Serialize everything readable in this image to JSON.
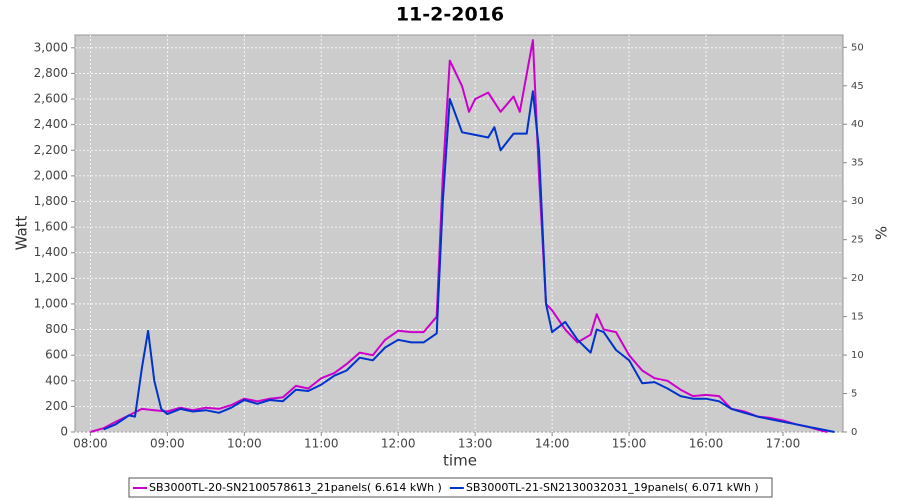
{
  "chart_data": {
    "type": "line",
    "title": "11-2-2016",
    "xlabel": "time",
    "ylabel": "Watt",
    "y2label": "%",
    "xlim": [
      7.8,
      17.78
    ],
    "xticks": [
      {
        "value": 8,
        "label": "08:00"
      },
      {
        "value": 9,
        "label": "09:00"
      },
      {
        "value": 10,
        "label": "10:00"
      },
      {
        "value": 11,
        "label": "11:00"
      },
      {
        "value": 12,
        "label": "12:00"
      },
      {
        "value": 13,
        "label": "13:00"
      },
      {
        "value": 14,
        "label": "14:00"
      },
      {
        "value": 15,
        "label": "15:00"
      },
      {
        "value": 16,
        "label": "16:00"
      },
      {
        "value": 17,
        "label": "17:00"
      }
    ],
    "ylim": [
      0,
      3100
    ],
    "yticks": [
      0,
      200,
      400,
      600,
      800,
      {
        "value": 1000,
        "label": "1,000"
      },
      {
        "value": 1200,
        "label": "1,200"
      },
      {
        "value": 1400,
        "label": "1,400"
      },
      {
        "value": 1600,
        "label": "1,600"
      },
      {
        "value": 1800,
        "label": "1,800"
      },
      {
        "value": 2000,
        "label": "2,000"
      },
      {
        "value": 2200,
        "label": "2,200"
      },
      {
        "value": 2400,
        "label": "2,400"
      },
      {
        "value": 2600,
        "label": "2,600"
      },
      {
        "value": 2800,
        "label": "2,800"
      },
      {
        "value": 3000,
        "label": "3,000"
      }
    ],
    "y2lim": [
      0,
      51.6
    ],
    "y2ticks": [
      0,
      5,
      10,
      15,
      20,
      25,
      30,
      35,
      40,
      45,
      50
    ],
    "grid": true,
    "legend": "bottom",
    "series": [
      {
        "name": "SB3000TL-20-SN2100578613_21panels( 6.614 kWh )",
        "color": "#cc00cc",
        "x": [
          8.0,
          8.17,
          8.33,
          8.5,
          8.67,
          8.83,
          9.0,
          9.17,
          9.33,
          9.5,
          9.67,
          9.83,
          10.0,
          10.17,
          10.33,
          10.5,
          10.67,
          10.83,
          11.0,
          11.17,
          11.33,
          11.5,
          11.67,
          11.83,
          12.0,
          12.17,
          12.33,
          12.5,
          12.58,
          12.67,
          12.83,
          12.92,
          13.0,
          13.17,
          13.33,
          13.5,
          13.58,
          13.75,
          13.83,
          13.92,
          14.0,
          14.17,
          14.33,
          14.5,
          14.58,
          14.67,
          14.83,
          15.0,
          15.17,
          15.33,
          15.5,
          15.67,
          15.83,
          16.0,
          16.17,
          16.33,
          16.5,
          16.67,
          16.83,
          17.0,
          17.17,
          17.33,
          17.5,
          17.58
        ],
        "values": [
          0,
          30,
          80,
          130,
          180,
          170,
          160,
          190,
          170,
          190,
          180,
          210,
          260,
          240,
          260,
          270,
          360,
          340,
          420,
          460,
          530,
          620,
          600,
          720,
          790,
          780,
          780,
          900,
          2000,
          2900,
          2700,
          2500,
          2600,
          2650,
          2500,
          2620,
          2500,
          3060,
          2000,
          1000,
          950,
          800,
          700,
          760,
          920,
          800,
          780,
          600,
          480,
          420,
          400,
          330,
          280,
          290,
          280,
          180,
          160,
          120,
          110,
          90,
          60,
          40,
          10,
          0
        ]
      },
      {
        "name": "SB3000TL-21-SN2130032031_19panels( 6.071 kWh )",
        "color": "#0033cc",
        "x": [
          8.17,
          8.33,
          8.5,
          8.58,
          8.67,
          8.75,
          8.83,
          8.92,
          9.0,
          9.17,
          9.33,
          9.5,
          9.67,
          9.83,
          10.0,
          10.17,
          10.33,
          10.5,
          10.67,
          10.83,
          11.0,
          11.17,
          11.33,
          11.5,
          11.67,
          11.83,
          12.0,
          12.17,
          12.33,
          12.5,
          12.58,
          12.67,
          12.83,
          13.0,
          13.17,
          13.25,
          13.33,
          13.5,
          13.67,
          13.75,
          13.83,
          13.92,
          14.0,
          14.17,
          14.33,
          14.5,
          14.58,
          14.67,
          14.83,
          15.0,
          15.17,
          15.33,
          15.5,
          15.67,
          15.83,
          16.0,
          16.17,
          16.33,
          16.5,
          16.67,
          16.83,
          17.0,
          17.17,
          17.33,
          17.5,
          17.67
        ],
        "values": [
          20,
          60,
          130,
          120,
          500,
          790,
          400,
          180,
          140,
          180,
          160,
          170,
          150,
          190,
          250,
          220,
          250,
          240,
          330,
          320,
          370,
          440,
          480,
          580,
          560,
          660,
          720,
          700,
          700,
          770,
          1800,
          2600,
          2340,
          2320,
          2300,
          2380,
          2200,
          2330,
          2330,
          2660,
          2200,
          1000,
          780,
          860,
          720,
          620,
          800,
          780,
          640,
          560,
          380,
          390,
          340,
          280,
          260,
          260,
          240,
          180,
          150,
          120,
          100,
          80,
          60,
          40,
          20,
          0
        ]
      }
    ]
  }
}
